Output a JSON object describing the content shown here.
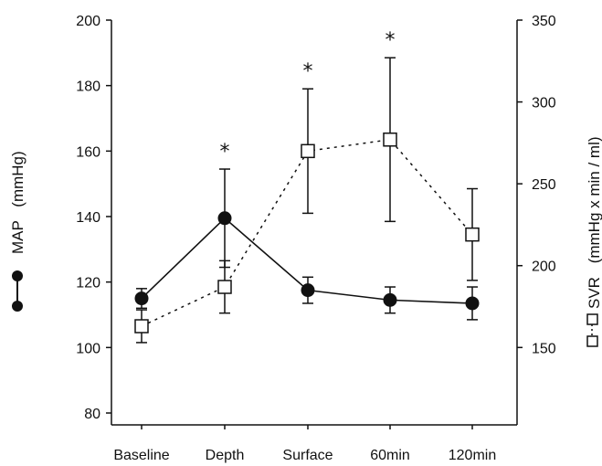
{
  "chart_data": {
    "type": "line",
    "categories": [
      "Baseline",
      "Depth",
      "Surface",
      "60min",
      "120min"
    ],
    "left_axis": {
      "label_name": "MAP",
      "label_unit": "(mmHg)",
      "ylim": [
        80,
        200
      ],
      "ticks": [
        "80",
        "100",
        "120",
        "140",
        "160",
        "180",
        "200"
      ]
    },
    "right_axis": {
      "label_name": "SVR",
      "label_unit": "(mmHg x min / ml)",
      "ylim": [
        115,
        350
      ],
      "ticks": [
        "150",
        "200",
        "250",
        "300",
        "350"
      ]
    },
    "series": [
      {
        "name": "MAP",
        "axis": "left",
        "marker": "filled-circle",
        "line": "solid",
        "values": [
          115,
          139.5,
          117.5,
          114.5,
          113.5
        ],
        "error": [
          3,
          15,
          4,
          4,
          5
        ]
      },
      {
        "name": "SVR",
        "axis": "right",
        "marker": "open-square",
        "line": "dotted",
        "values": [
          163,
          187,
          270,
          277,
          219
        ],
        "error": [
          10,
          16,
          38,
          50,
          28
        ]
      }
    ],
    "significance": [
      {
        "category": "Depth",
        "above_series": "MAP",
        "mark": "*"
      },
      {
        "category": "Surface",
        "above_series": "SVR",
        "mark": "*"
      },
      {
        "category": "60min",
        "above_series": "SVR",
        "mark": "*"
      }
    ],
    "colors": {
      "ink": "#111111",
      "background": "#ffffff"
    }
  }
}
